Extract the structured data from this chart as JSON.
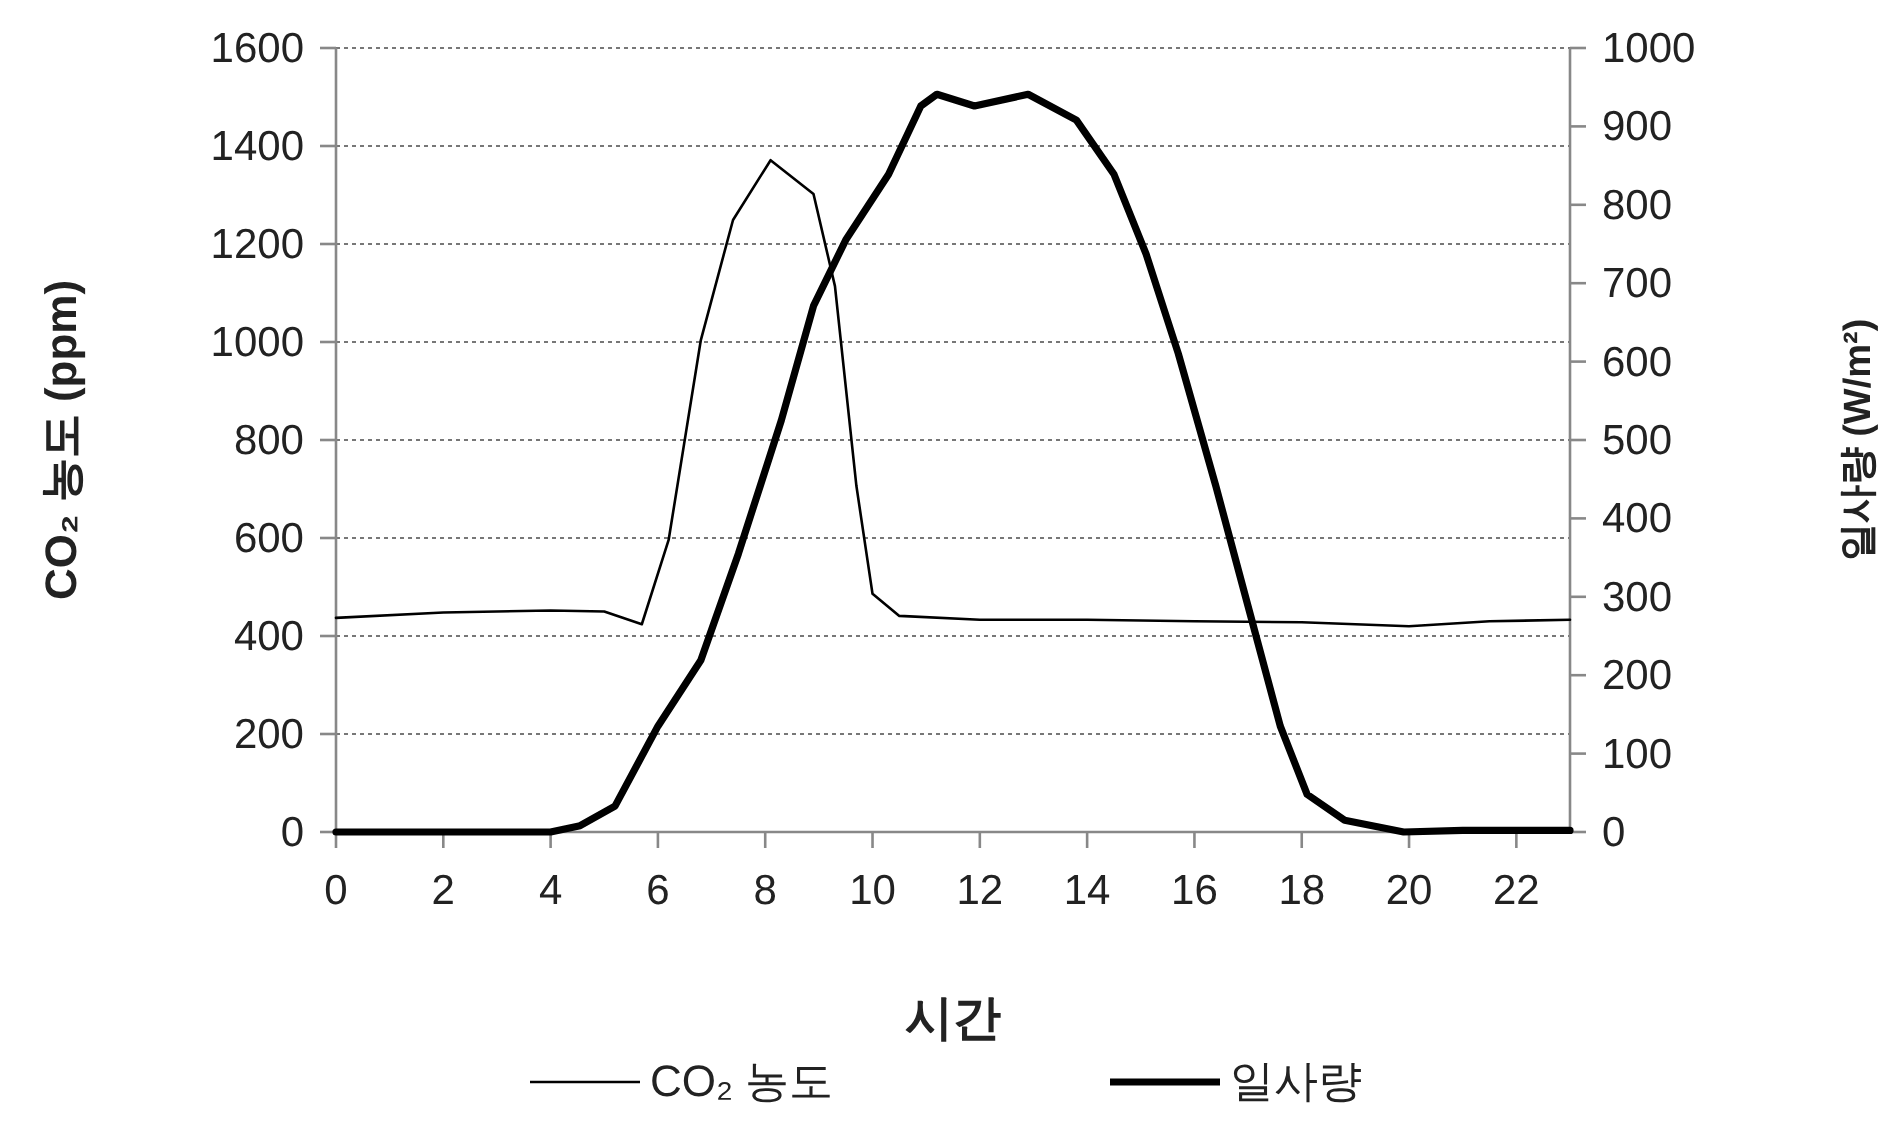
{
  "chart_data": {
    "type": "line",
    "xlabel": "시간",
    "ylabel": "CO₂ 농도 (ppm)",
    "y2label": "일사량 (W/m²)",
    "xlim": [
      0,
      23
    ],
    "xticks": [
      0,
      2,
      4,
      6,
      8,
      10,
      12,
      14,
      16,
      18,
      20,
      22
    ],
    "ylim": [
      0,
      1600
    ],
    "yticks": [
      0,
      200,
      400,
      600,
      800,
      1000,
      1200,
      1400,
      1600
    ],
    "y2lim": [
      0,
      1000
    ],
    "y2ticks": [
      0,
      100,
      200,
      300,
      400,
      500,
      600,
      700,
      800,
      900,
      1000
    ],
    "grid": "y",
    "legend": "bottom",
    "series": [
      {
        "name": "CO₂ 농도",
        "color": "#000000",
        "x": [
          0,
          2,
          4,
          5,
          5.7,
          6.2,
          6.8,
          7.4,
          8.1,
          8.9,
          9.3,
          9.7,
          10,
          10.5,
          12,
          14,
          16,
          18,
          20,
          21.5,
          23
        ],
        "values": [
          437,
          448,
          452,
          450,
          424,
          596,
          1004,
          1249,
          1371,
          1302,
          1114,
          706,
          486,
          441,
          433,
          433,
          430,
          428,
          420,
          430,
          433
        ]
      },
      {
        "name": "일사량",
        "color": "#000000",
        "axis": "y2",
        "x": [
          0,
          2,
          3,
          4,
          4.55,
          5.2,
          6,
          6.8,
          7.5,
          8.3,
          8.9,
          9.5,
          10.3,
          10.9,
          11.2,
          11.9,
          12.9,
          13.8,
          14.5,
          15.1,
          15.7,
          16.4,
          17,
          17.6,
          18.1,
          18.8,
          19.9,
          21,
          23
        ],
        "values": [
          0,
          0,
          0,
          0,
          8,
          33,
          135,
          219,
          355,
          525,
          671,
          755,
          839,
          926,
          941,
          926,
          941,
          908,
          839,
          737,
          610,
          441,
          288,
          135,
          48,
          15,
          0,
          2,
          2
        ]
      }
    ]
  }
}
